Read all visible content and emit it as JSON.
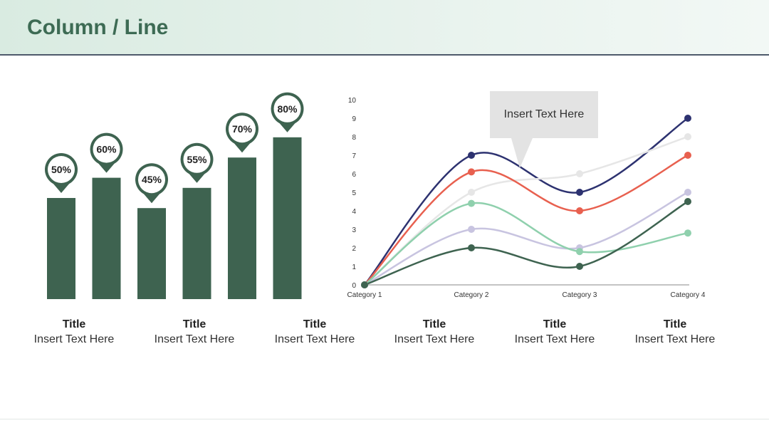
{
  "page": {
    "title": "Column / Line",
    "callout_text": "Insert Text Here"
  },
  "colors": {
    "accent": "#3d6b54",
    "bar": "#3e6350"
  },
  "captions": [
    {
      "title": "Title",
      "text": "Insert Text Here"
    },
    {
      "title": "Title",
      "text": "Insert Text Here"
    },
    {
      "title": "Title",
      "text": "Insert Text Here"
    },
    {
      "title": "Title",
      "text": "Insert Text Here"
    },
    {
      "title": "Title",
      "text": "Insert Text Here"
    },
    {
      "title": "Title",
      "text": "Insert Text Here"
    }
  ],
  "chart_data": [
    {
      "type": "bar",
      "values": [
        50,
        60,
        45,
        55,
        70,
        80
      ],
      "labels": [
        "50%",
        "60%",
        "45%",
        "55%",
        "70%",
        "80%"
      ],
      "ylim": [
        0,
        100
      ],
      "color": "#3e6350"
    },
    {
      "type": "line",
      "categories": [
        "Category 1",
        "Category 2",
        "Category 3",
        "Category 4"
      ],
      "yticks": [
        "0",
        "1",
        "2",
        "3",
        "4",
        "5",
        "6",
        "7",
        "8",
        "9",
        "10"
      ],
      "ylim": [
        0,
        10
      ],
      "series": [
        {
          "color": "#2d3270",
          "values": [
            0,
            7,
            5,
            9
          ]
        },
        {
          "color": "#e6e6e6",
          "values": [
            0,
            5,
            6,
            8
          ]
        },
        {
          "color": "#e8604f",
          "values": [
            0,
            6.1,
            4,
            7
          ]
        },
        {
          "color": "#c8c4e0",
          "values": [
            0,
            3,
            2,
            5
          ]
        },
        {
          "color": "#8fd0ad",
          "values": [
            0,
            4.4,
            1.8,
            2.8
          ]
        },
        {
          "color": "#3e6350",
          "values": [
            0,
            2,
            1,
            4.5
          ]
        }
      ]
    }
  ]
}
